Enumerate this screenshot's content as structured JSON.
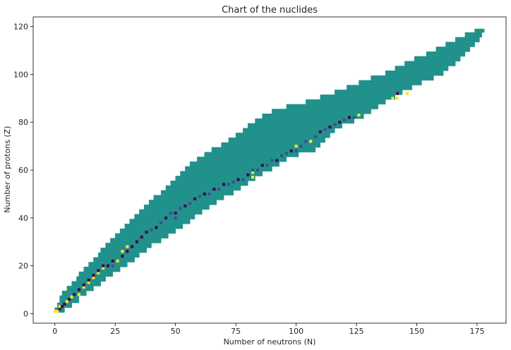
{
  "chart_data": {
    "type": "heatmap",
    "title": "Chart of the nuclides",
    "xlabel": "Number of neutrons (N)",
    "ylabel": "Number of protons (Z)",
    "xlim": [
      -9,
      187
    ],
    "ylim": [
      -4,
      124
    ],
    "xticks": [
      0,
      25,
      50,
      75,
      100,
      125,
      150,
      175
    ],
    "yticks": [
      0,
      20,
      40,
      60,
      80,
      100,
      120
    ],
    "colors": {
      "band": "#21918c",
      "unstable_long": "#3b528b",
      "stable": "#440154",
      "highlight": "#fde725",
      "mid": "#5ec962",
      "frame": "#000000"
    },
    "band_boundary": {
      "description": "filled region of known nuclides, Z vs neutron range (N_min, N_max)",
      "rows": [
        [
          1,
          0,
          4
        ],
        [
          3,
          1,
          7
        ],
        [
          5,
          2,
          10
        ],
        [
          8,
          3,
          13
        ],
        [
          10,
          5,
          16
        ],
        [
          12,
          7,
          19
        ],
        [
          14,
          9,
          21
        ],
        [
          16,
          10,
          24
        ],
        [
          18,
          12,
          27
        ],
        [
          20,
          14,
          30
        ],
        [
          22,
          16,
          33
        ],
        [
          24,
          18,
          35
        ],
        [
          26,
          19,
          38
        ],
        [
          28,
          21,
          40
        ],
        [
          30,
          23,
          44
        ],
        [
          32,
          25,
          47
        ],
        [
          34,
          27,
          50
        ],
        [
          36,
          29,
          53
        ],
        [
          38,
          31,
          56
        ],
        [
          40,
          33,
          58
        ],
        [
          42,
          35,
          61
        ],
        [
          44,
          37,
          64
        ],
        [
          46,
          39,
          67
        ],
        [
          48,
          41,
          70
        ],
        [
          50,
          44,
          74
        ],
        [
          52,
          46,
          77
        ],
        [
          54,
          48,
          80
        ],
        [
          56,
          50,
          83
        ],
        [
          58,
          52,
          86
        ],
        [
          60,
          54,
          90
        ],
        [
          62,
          56,
          93
        ],
        [
          64,
          59,
          96
        ],
        [
          66,
          62,
          101
        ],
        [
          68,
          65,
          108
        ],
        [
          70,
          69,
          110
        ],
        [
          72,
          72,
          112
        ],
        [
          74,
          75,
          114
        ],
        [
          76,
          78,
          116
        ],
        [
          78,
          80,
          119
        ],
        [
          80,
          83,
          124
        ],
        [
          82,
          86,
          128
        ],
        [
          84,
          90,
          131
        ],
        [
          86,
          96,
          134
        ],
        [
          88,
          104,
          137
        ],
        [
          90,
          110,
          141
        ],
        [
          92,
          116,
          144
        ],
        [
          94,
          121,
          148
        ],
        [
          96,
          126,
          152
        ],
        [
          98,
          131,
          157
        ],
        [
          100,
          137,
          161
        ],
        [
          102,
          141,
          163
        ],
        [
          104,
          145,
          166
        ],
        [
          106,
          149,
          168
        ],
        [
          108,
          154,
          170
        ],
        [
          110,
          158,
          172
        ],
        [
          112,
          162,
          174
        ],
        [
          114,
          166,
          176
        ],
        [
          116,
          170,
          177
        ],
        [
          118,
          174,
          178
        ]
      ]
    },
    "points": {
      "description": "highlighted nuclides along the valley of stability [N, Z, category]",
      "items": [
        [
          1,
          1,
          "highlight"
        ],
        [
          0,
          1,
          "highlight"
        ],
        [
          2,
          2,
          "stable"
        ],
        [
          2,
          3,
          "highlight"
        ],
        [
          3,
          3,
          "stable"
        ],
        [
          4,
          4,
          "stable"
        ],
        [
          5,
          5,
          "highlight"
        ],
        [
          6,
          6,
          "stable"
        ],
        [
          7,
          7,
          "highlight"
        ],
        [
          8,
          8,
          "stable"
        ],
        [
          10,
          8,
          "highlight"
        ],
        [
          10,
          10,
          "stable"
        ],
        [
          12,
          11,
          "highlight"
        ],
        [
          12,
          12,
          "stable"
        ],
        [
          14,
          13,
          "highlight"
        ],
        [
          14,
          14,
          "stable"
        ],
        [
          16,
          15,
          "highlight"
        ],
        [
          16,
          16,
          "stable"
        ],
        [
          18,
          17,
          "highlight"
        ],
        [
          18,
          18,
          "stable"
        ],
        [
          20,
          19,
          "highlight"
        ],
        [
          20,
          20,
          "stable"
        ],
        [
          22,
          20,
          "stable"
        ],
        [
          24,
          20,
          "unstable_long"
        ],
        [
          24,
          22,
          "stable"
        ],
        [
          26,
          22,
          "highlight"
        ],
        [
          28,
          24,
          "stable"
        ],
        [
          28,
          26,
          "highlight"
        ],
        [
          30,
          26,
          "stable"
        ],
        [
          30,
          28,
          "highlight"
        ],
        [
          32,
          28,
          "stable"
        ],
        [
          34,
          30,
          "stable"
        ],
        [
          36,
          32,
          "stable"
        ],
        [
          38,
          34,
          "stable"
        ],
        [
          40,
          35,
          "unstable_long"
        ],
        [
          42,
          36,
          "stable"
        ],
        [
          44,
          38,
          "unstable_long"
        ],
        [
          46,
          40,
          "stable"
        ],
        [
          48,
          42,
          "unstable_long"
        ],
        [
          50,
          40,
          "unstable_long"
        ],
        [
          50,
          42,
          "stable"
        ],
        [
          52,
          44,
          "unstable_long"
        ],
        [
          54,
          45,
          "stable"
        ],
        [
          56,
          46,
          "unstable_long"
        ],
        [
          58,
          48,
          "stable"
        ],
        [
          60,
          49,
          "unstable_long"
        ],
        [
          62,
          50,
          "stable"
        ],
        [
          64,
          50,
          "unstable_long"
        ],
        [
          66,
          52,
          "stable"
        ],
        [
          68,
          52,
          "unstable_long"
        ],
        [
          70,
          54,
          "stable"
        ],
        [
          72,
          54,
          "unstable_long"
        ],
        [
          74,
          55,
          "unstable_long"
        ],
        [
          76,
          56,
          "stable"
        ],
        [
          78,
          56,
          "unstable_long"
        ],
        [
          80,
          58,
          "stable"
        ],
        [
          82,
          57,
          "highlight"
        ],
        [
          82,
          59,
          "highlight"
        ],
        [
          82,
          60,
          "unstable_long"
        ],
        [
          84,
          60,
          "unstable_long"
        ],
        [
          86,
          62,
          "stable"
        ],
        [
          88,
          62,
          "unstable_long"
        ],
        [
          90,
          64,
          "unstable_long"
        ],
        [
          92,
          64,
          "stable"
        ],
        [
          94,
          66,
          "unstable_long"
        ],
        [
          96,
          67,
          "unstable_long"
        ],
        [
          98,
          68,
          "stable"
        ],
        [
          100,
          68,
          "unstable_long"
        ],
        [
          100,
          70,
          "highlight"
        ],
        [
          102,
          70,
          "unstable_long"
        ],
        [
          104,
          72,
          "unstable_long"
        ],
        [
          106,
          72,
          "highlight"
        ],
        [
          108,
          74,
          "unstable_long"
        ],
        [
          110,
          76,
          "stable"
        ],
        [
          112,
          77,
          "unstable_long"
        ],
        [
          114,
          78,
          "stable"
        ],
        [
          116,
          79,
          "unstable_long"
        ],
        [
          118,
          80,
          "stable"
        ],
        [
          120,
          81,
          "unstable_long"
        ],
        [
          122,
          82,
          "stable"
        ],
        [
          124,
          82,
          "unstable_long"
        ],
        [
          126,
          83,
          "highlight"
        ],
        [
          140,
          90,
          "highlight"
        ],
        [
          142,
          90,
          "highlight"
        ],
        [
          142,
          92,
          "stable"
        ],
        [
          146,
          92,
          "highlight"
        ]
      ]
    }
  }
}
